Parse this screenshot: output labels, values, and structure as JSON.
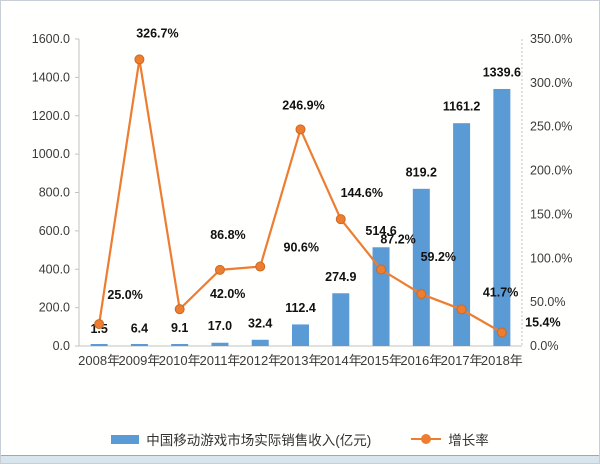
{
  "chart_data": {
    "type": "combo",
    "title": "",
    "categories": [
      "2008年",
      "2009年",
      "2010年",
      "2011年",
      "2012年",
      "2013年",
      "2014年",
      "2015年",
      "2016年",
      "2017年",
      "2018年"
    ],
    "series": [
      {
        "name": "中国移动游戏市场实际销售收入(亿元)",
        "type": "bar",
        "axis": "left",
        "values": [
          1.5,
          6.4,
          9.1,
          17.0,
          32.4,
          112.4,
          274.9,
          514.6,
          819.2,
          1161.2,
          1339.6
        ],
        "data_labels": [
          "1.5",
          "6.4",
          "9.1",
          "17.0",
          "32.4",
          "112.4",
          "274.9",
          "514.6",
          "819.2",
          "1161.2",
          "1339.6"
        ],
        "color": "#5B9BD5"
      },
      {
        "name": "增长率",
        "type": "line",
        "axis": "right",
        "values": [
          25.0,
          326.7,
          42.0,
          86.8,
          90.6,
          246.9,
          144.6,
          87.2,
          59.2,
          41.7,
          15.4
        ],
        "data_labels": [
          "25.0%",
          "326.7%",
          "42.0%",
          "86.8%",
          "90.6%",
          "246.9%",
          "144.6%",
          "87.2%",
          "59.2%",
          "41.7%",
          "15.4%"
        ],
        "color": "#ED7D31",
        "marker_stroke": "#CB6A24"
      }
    ],
    "left_axis": {
      "min": 0,
      "max": 1600,
      "step": 200,
      "tick_labels": [
        "0.0",
        "200.0",
        "400.0",
        "600.0",
        "800.0",
        "1000.0",
        "1200.0",
        "1400.0",
        "1600.0"
      ]
    },
    "right_axis": {
      "min": 0,
      "max": 350,
      "step": 50,
      "tick_labels": [
        "0.0%",
        "50.0%",
        "100.0%",
        "150.0%",
        "200.0%",
        "250.0%",
        "300.0%",
        "350.0%"
      ]
    },
    "grid": "off",
    "legend_position": "bottom",
    "axis_color": "#c3c3c3",
    "tick_text_color": "#3b3b3b",
    "data_label_color": "#111111"
  }
}
